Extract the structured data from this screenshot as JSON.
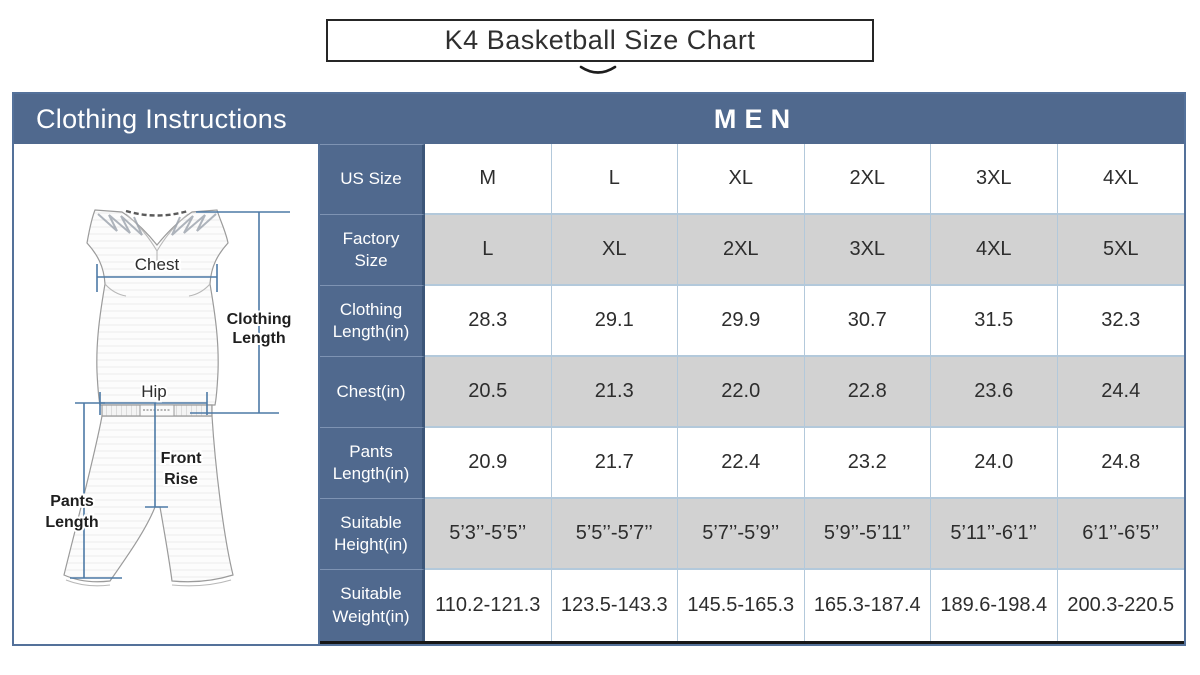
{
  "title": "K4 Basketball Size Chart",
  "header": {
    "left": "Clothing Instructions",
    "right": "MEN"
  },
  "illustration": {
    "labels": {
      "chest": "Chest",
      "hip": "Hip",
      "clothing_length_line1": "Clothing",
      "clothing_length_line2": "Length",
      "front_rise_line1": "Front",
      "front_rise_line2": "Rise",
      "pants_length_line1": "Pants",
      "pants_length_line2": "Length"
    }
  },
  "size_chart": {
    "type": "table",
    "rows": [
      {
        "label": "US Size",
        "values": [
          "M",
          "L",
          "XL",
          "2XL",
          "3XL",
          "4XL"
        ]
      },
      {
        "label": "Factory Size",
        "values": [
          "L",
          "XL",
          "2XL",
          "3XL",
          "4XL",
          "5XL"
        ]
      },
      {
        "label": "Clothing Length(in)",
        "values": [
          "28.3",
          "29.1",
          "29.9",
          "30.7",
          "31.5",
          "32.3"
        ]
      },
      {
        "label": "Chest(in)",
        "values": [
          "20.5",
          "21.3",
          "22.0",
          "22.8",
          "23.6",
          "24.4"
        ]
      },
      {
        "label": "Pants Length(in)",
        "values": [
          "20.9",
          "21.7",
          "22.4",
          "23.2",
          "24.0",
          "24.8"
        ]
      },
      {
        "label": "Suitable Height(in)",
        "values": [
          "5’3’’-5’5’’",
          "5’5’’-5’7’’",
          "5’7’’-5’9’’",
          "5’9’’-5’11’’",
          "5’11’’-6’1’’",
          "6’1’’-6’5’’"
        ]
      },
      {
        "label": "Suitable Weight(in)",
        "values": [
          "110.2-121.3",
          "123.5-143.3",
          "145.5-165.3",
          "165.3-187.4",
          "189.6-198.4",
          "200.3-220.5"
        ]
      }
    ]
  },
  "colors": {
    "header_blue": "#50698e",
    "row_gray": "#d2d2d2",
    "divider_light_blue": "#b3c9db",
    "label_column_edge": "#3c5679",
    "panel_border_blue": "#54719a",
    "measure_line_blue": "#4d7aa6",
    "table_bottom_black": "#161616",
    "title_text": "#2f2f2f"
  }
}
